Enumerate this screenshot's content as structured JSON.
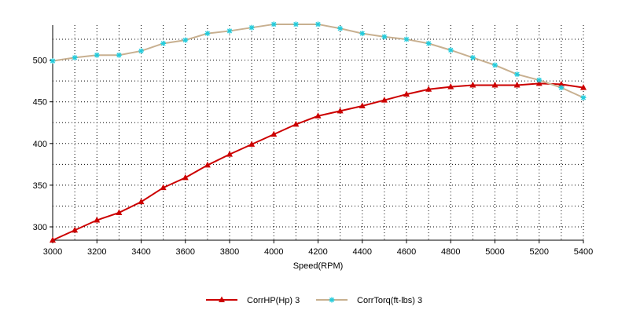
{
  "chart_data": {
    "type": "line",
    "xlabel": "Speed(RPM)",
    "ylabel": "",
    "xlim": [
      3000,
      5400
    ],
    "ylim": [
      284,
      542
    ],
    "x_ticks": [
      3000,
      3200,
      3400,
      3600,
      3800,
      4000,
      4200,
      4400,
      4600,
      4800,
      5000,
      5200,
      5400
    ],
    "x_grid_step": 100,
    "y_ticks": [
      300,
      350,
      400,
      450,
      500
    ],
    "y_grid_step": 25,
    "grid": true,
    "legend_position": "bottom",
    "x": [
      3000,
      3100,
      3200,
      3300,
      3400,
      3500,
      3600,
      3700,
      3800,
      3900,
      4000,
      4100,
      4200,
      4300,
      4400,
      4500,
      4600,
      4700,
      4800,
      4900,
      5000,
      5100,
      5200,
      5300,
      5400
    ],
    "series": [
      {
        "name": "CorrHP(Hp)  3",
        "color": "#cc0000",
        "marker": "triangle",
        "values": [
          284,
          296,
          308,
          317,
          330,
          347,
          359,
          374,
          387,
          399,
          411,
          423,
          433,
          439,
          445,
          452,
          459,
          465,
          468,
          470,
          470,
          470,
          472,
          471,
          467
        ]
      },
      {
        "name": "CorrTorq(ft-lbs)  3",
        "color": "#c8b090",
        "marker_color": "#22ccdd",
        "marker": "star",
        "values": [
          499,
          503,
          506,
          506,
          511,
          520,
          524,
          532,
          535,
          539,
          543,
          543,
          543,
          538,
          532,
          528,
          525,
          520,
          512,
          503,
          494,
          483,
          476,
          467,
          455
        ]
      }
    ]
  }
}
